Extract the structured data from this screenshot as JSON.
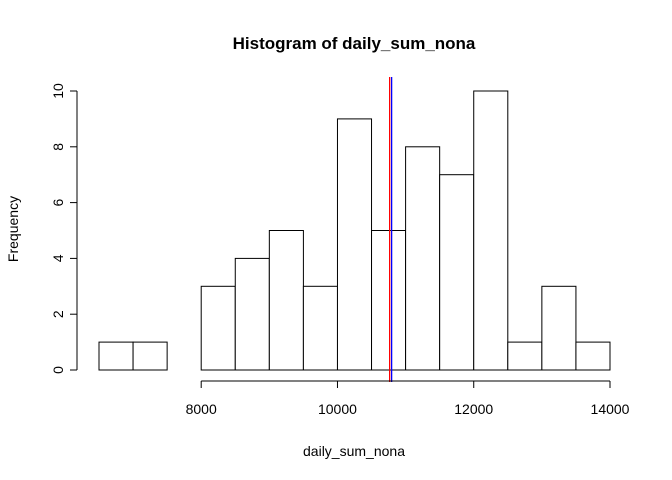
{
  "chart_data": {
    "type": "bar",
    "title": "Histogram of daily_sum_nona",
    "xlabel": "daily_sum_nona",
    "ylabel": "Frequency",
    "xlim": [
      6500,
      14000
    ],
    "ylim": [
      0,
      10
    ],
    "bins": [
      {
        "start": 6500,
        "end": 7000,
        "count": 1
      },
      {
        "start": 7000,
        "end": 7500,
        "count": 1
      },
      {
        "start": 7500,
        "end": 8000,
        "count": 0
      },
      {
        "start": 8000,
        "end": 8500,
        "count": 3
      },
      {
        "start": 8500,
        "end": 9000,
        "count": 4
      },
      {
        "start": 9000,
        "end": 9500,
        "count": 5
      },
      {
        "start": 9500,
        "end": 10000,
        "count": 3
      },
      {
        "start": 10000,
        "end": 10500,
        "count": 9
      },
      {
        "start": 10500,
        "end": 11000,
        "count": 5
      },
      {
        "start": 11000,
        "end": 11500,
        "count": 8
      },
      {
        "start": 11500,
        "end": 12000,
        "count": 7
      },
      {
        "start": 12000,
        "end": 12500,
        "count": 10
      },
      {
        "start": 12500,
        "end": 13000,
        "count": 1
      },
      {
        "start": 13000,
        "end": 13500,
        "count": 3
      },
      {
        "start": 13500,
        "end": 14000,
        "count": 1
      }
    ],
    "x_ticks": [
      8000,
      10000,
      12000,
      14000
    ],
    "y_ticks": [
      0,
      2,
      4,
      6,
      8,
      10
    ],
    "vertical_lines": [
      {
        "x": 10766,
        "color": "#ff0000"
      },
      {
        "x": 10795,
        "color": "#0000ff"
      }
    ],
    "bar_fill": "#ffffff",
    "bar_stroke": "#000000",
    "grid": false,
    "legend": "none"
  }
}
